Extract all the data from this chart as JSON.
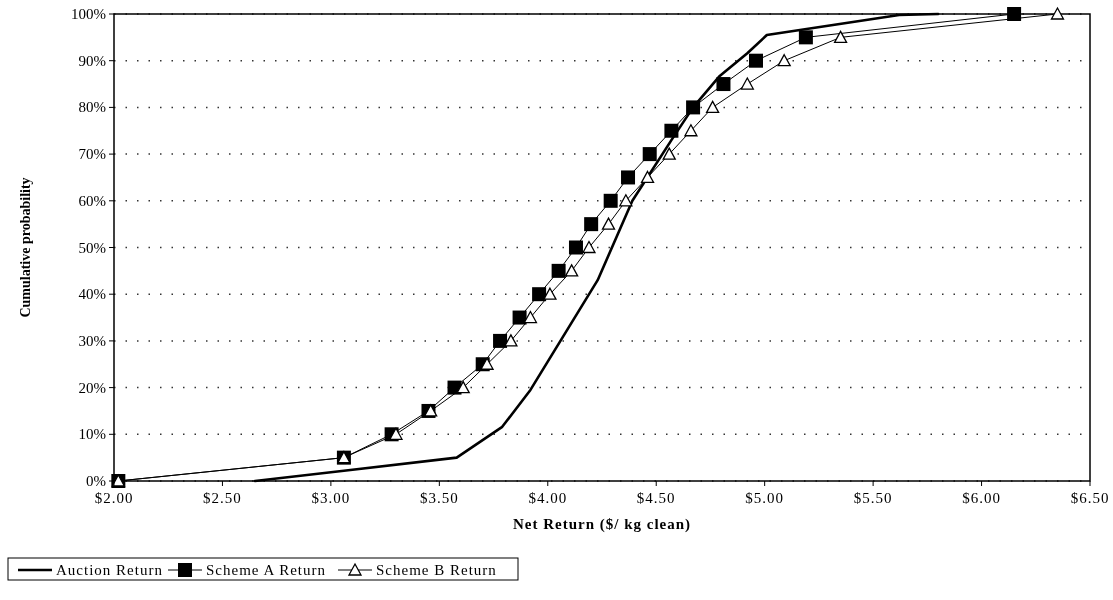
{
  "chart_data": {
    "type": "line",
    "xlabel": "Net Return ($/ kg clean)",
    "ylabel": "Cumulative probability",
    "xlim": [
      2,
      6.5
    ],
    "ylim": [
      0,
      100
    ],
    "xticks": [
      {
        "value": 2,
        "label": "$2.00"
      },
      {
        "value": 2.5,
        "label": "$2.50"
      },
      {
        "value": 3,
        "label": "$3.00"
      },
      {
        "value": 3.5,
        "label": "$3.50"
      },
      {
        "value": 4,
        "label": "$4.00"
      },
      {
        "value": 4.5,
        "label": "$4.50"
      },
      {
        "value": 5,
        "label": "$5.00"
      },
      {
        "value": 5.5,
        "label": "$5.50"
      },
      {
        "value": 6,
        "label": "$6.00"
      },
      {
        "value": 6.5,
        "label": "$6.50"
      }
    ],
    "yticks": [
      {
        "value": 0,
        "label": "0%"
      },
      {
        "value": 10,
        "label": "10%"
      },
      {
        "value": 20,
        "label": "20%"
      },
      {
        "value": 30,
        "label": "30%"
      },
      {
        "value": 40,
        "label": "40%"
      },
      {
        "value": 50,
        "label": "50%"
      },
      {
        "value": 60,
        "label": "60%"
      },
      {
        "value": 70,
        "label": "70%"
      },
      {
        "value": 80,
        "label": "80%"
      },
      {
        "value": 90,
        "label": "90%"
      },
      {
        "value": 100,
        "label": "100%"
      }
    ],
    "grid": "y",
    "legend": "bottom",
    "series": [
      {
        "name": "Auction Return",
        "color": "#000000",
        "marker": "none",
        "x": [
          2.65,
          3.06,
          3.58,
          3.79,
          3.92,
          4.23,
          4.39,
          4.57,
          4.67,
          4.79,
          4.92,
          5.01,
          5.62,
          5.8
        ],
        "values": [
          0,
          2.2,
          5,
          11.6,
          19.5,
          43,
          60,
          73,
          80,
          86.6,
          91.6,
          95.5,
          99.8,
          100
        ]
      },
      {
        "name": "Scheme A Return",
        "color": "#000000",
        "marker": "square",
        "x": [
          2.02,
          3.06,
          3.28,
          3.45,
          3.57,
          3.7,
          3.78,
          3.87,
          3.96,
          4.05,
          4.13,
          4.2,
          4.29,
          4.37,
          4.47,
          4.57,
          4.67,
          4.81,
          4.96,
          5.19,
          6.15
        ],
        "values": [
          0,
          5,
          10,
          15,
          20,
          25,
          30,
          35,
          40,
          45,
          50,
          55,
          60,
          65,
          70,
          75,
          80,
          85,
          90,
          95,
          100
        ]
      },
      {
        "name": "Scheme B Return",
        "color": "#000000",
        "marker": "triangle",
        "x": [
          2.02,
          3.06,
          3.3,
          3.46,
          3.61,
          3.72,
          3.83,
          3.92,
          4.01,
          4.11,
          4.19,
          4.28,
          4.36,
          4.46,
          4.56,
          4.66,
          4.76,
          4.92,
          5.09,
          5.35,
          6.35
        ],
        "values": [
          0,
          5,
          10,
          15,
          20,
          25,
          30,
          35,
          40,
          45,
          50,
          55,
          60,
          65,
          70,
          75,
          80,
          85,
          90,
          95,
          100
        ]
      }
    ]
  }
}
